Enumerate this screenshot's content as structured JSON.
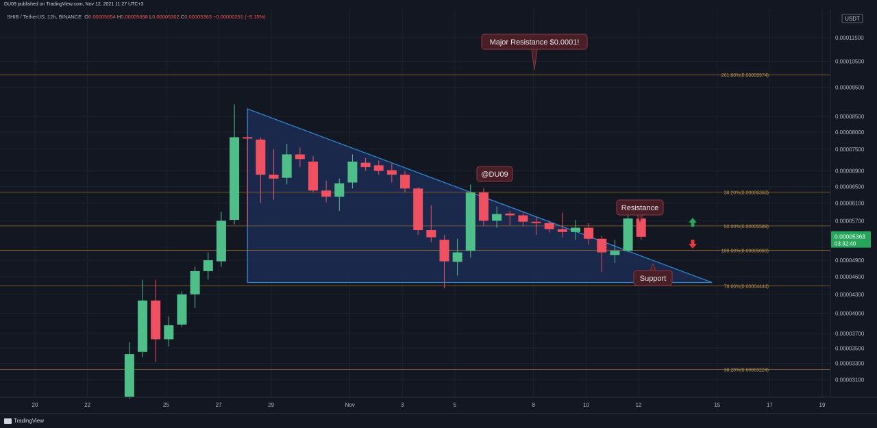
{
  "header": {
    "published": "DU09 published on TradingView.com, Nov 12, 2021 11:27 UTC+3"
  },
  "legend": {
    "symbol": "SHIB / TetherUS, 12h, BINANCE",
    "ohlc": [
      {
        "key": "O",
        "value": "0.00005654"
      },
      {
        "key": "H",
        "value": "0.00005698"
      },
      {
        "key": "L",
        "value": "0.00005302"
      },
      {
        "key": "C",
        "value": "0.00005363"
      }
    ],
    "change": "−0.00000291 (−5.15%)"
  },
  "price_axis": {
    "currency": "USDT",
    "current_price": "0.00005363",
    "countdown": "03:32:40"
  },
  "footer": {
    "brand": "TradingView"
  },
  "colors": {
    "up": "#4fbf8a",
    "down": "#f0505f",
    "triangle_fill": "#1b2c52",
    "triangle_line": "#2f86d0",
    "fib_line": "#9a6b2e",
    "fib_label": "#c79a4a",
    "callout_bg": "#4a1e26",
    "callout_border": "#8a3a45",
    "background": "#131722"
  },
  "chart_data": {
    "type": "candlestick",
    "title": "SHIB / TetherUS, 12h, BINANCE",
    "ylim": [
      2.9e-05,
      0.000128
    ],
    "y_ticks": [
      {
        "label": "0.00003100",
        "v": 3.1e-05
      },
      {
        "label": "0.00003300",
        "v": 3.3e-05
      },
      {
        "label": "0.00003500",
        "v": 3.5e-05
      },
      {
        "label": "0.00003700",
        "v": 3.7e-05
      },
      {
        "label": "0.00004000",
        "v": 4e-05
      },
      {
        "label": "0.00004300",
        "v": 4.3e-05
      },
      {
        "label": "0.00004600",
        "v": 4.6e-05
      },
      {
        "label": "0.00004900",
        "v": 4.9e-05
      },
      {
        "label": "0.00005700",
        "v": 5.7e-05
      },
      {
        "label": "0.00006100",
        "v": 6.1e-05
      },
      {
        "label": "0.00006500",
        "v": 6.5e-05
      },
      {
        "label": "0.00006900",
        "v": 6.9e-05
      },
      {
        "label": "0.00007500",
        "v": 7.5e-05
      },
      {
        "label": "0.00008000",
        "v": 8e-05
      },
      {
        "label": "0.00008500",
        "v": 8.5e-05
      },
      {
        "label": "0.00009500",
        "v": 9.5e-05
      },
      {
        "label": "0.00010500",
        "v": 0.000105
      },
      {
        "label": "0.00011500",
        "v": 0.000115
      }
    ],
    "x_ticks": [
      {
        "label": "20",
        "day": 20
      },
      {
        "label": "22",
        "day": 22
      },
      {
        "label": "25",
        "day": 25
      },
      {
        "label": "27",
        "day": 27
      },
      {
        "label": "29",
        "day": 29
      },
      {
        "label": "Nov",
        "day": 32
      },
      {
        "label": "3",
        "day": 34
      },
      {
        "label": "5",
        "day": 36
      },
      {
        "label": "8",
        "day": 39
      },
      {
        "label": "10",
        "day": 41
      },
      {
        "label": "12",
        "day": 43
      },
      {
        "label": "15",
        "day": 46
      },
      {
        "label": "17",
        "day": 48
      },
      {
        "label": "19",
        "day": 50
      }
    ],
    "candles": [
      {
        "o": 2.9e-05,
        "h": 3.58e-05,
        "l": 2.88e-05,
        "c": 3.42e-05
      },
      {
        "o": 3.45e-05,
        "h": 4.55e-05,
        "l": 3.38e-05,
        "c": 4.2e-05
      },
      {
        "o": 4.2e-05,
        "h": 4.55e-05,
        "l": 3.32e-05,
        "c": 3.62e-05
      },
      {
        "o": 3.62e-05,
        "h": 3.95e-05,
        "l": 3.52e-05,
        "c": 3.82e-05
      },
      {
        "o": 3.83e-05,
        "h": 4.35e-05,
        "l": 3.8e-05,
        "c": 4.3e-05
      },
      {
        "o": 4.3e-05,
        "h": 4.78e-05,
        "l": 4.08e-05,
        "c": 4.7e-05
      },
      {
        "o": 4.7e-05,
        "h": 5.05e-05,
        "l": 4.55e-05,
        "c": 4.9e-05
      },
      {
        "o": 4.88e-05,
        "h": 5.9e-05,
        "l": 4.78e-05,
        "c": 5.7e-05
      },
      {
        "o": 5.72e-05,
        "h": 8.9e-05,
        "l": 5.62e-05,
        "c": 7.85e-05
      },
      {
        "o": 7.85e-05,
        "h": 7.9e-05,
        "l": 5.6e-05,
        "c": 7.82e-05
      },
      {
        "o": 7.78e-05,
        "h": 7.85e-05,
        "l": 6.1e-05,
        "c": 6.8e-05
      },
      {
        "o": 6.8e-05,
        "h": 7.5e-05,
        "l": 6.18e-05,
        "c": 6.7e-05
      },
      {
        "o": 6.72e-05,
        "h": 7.65e-05,
        "l": 6.55e-05,
        "c": 7.35e-05
      },
      {
        "o": 7.35e-05,
        "h": 7.55e-05,
        "l": 7e-05,
        "c": 7.22e-05
      },
      {
        "o": 7.15e-05,
        "h": 7.3e-05,
        "l": 6.35e-05,
        "c": 6.4e-05
      },
      {
        "o": 6.4e-05,
        "h": 6.65e-05,
        "l": 6.12e-05,
        "c": 6.25e-05
      },
      {
        "o": 6.25e-05,
        "h": 6.7e-05,
        "l": 5.92e-05,
        "c": 6.58e-05
      },
      {
        "o": 6.6e-05,
        "h": 7.35e-05,
        "l": 6.45e-05,
        "c": 7.15e-05
      },
      {
        "o": 7.12e-05,
        "h": 7.25e-05,
        "l": 6.9e-05,
        "c": 7e-05
      },
      {
        "o": 7.05e-05,
        "h": 7.18e-05,
        "l": 6.8e-05,
        "c": 6.9e-05
      },
      {
        "o": 6.92e-05,
        "h": 7.1e-05,
        "l": 6.6e-05,
        "c": 6.8e-05
      },
      {
        "o": 6.8e-05,
        "h": 6.9e-05,
        "l": 6.35e-05,
        "c": 6.45e-05
      },
      {
        "o": 6.45e-05,
        "h": 6.48e-05,
        "l": 5.4e-05,
        "c": 5.5e-05
      },
      {
        "o": 5.5e-05,
        "h": 6.05e-05,
        "l": 5.25e-05,
        "c": 5.35e-05
      },
      {
        "o": 5.3e-05,
        "h": 5.4e-05,
        "l": 4.4e-05,
        "c": 4.88e-05
      },
      {
        "o": 4.87e-05,
        "h": 5.32e-05,
        "l": 4.62e-05,
        "c": 5.05e-05
      },
      {
        "o": 5.08e-05,
        "h": 6.55e-05,
        "l": 4.95e-05,
        "c": 6.35e-05
      },
      {
        "o": 6.35e-05,
        "h": 6.45e-05,
        "l": 5.58e-05,
        "c": 5.7e-05
      },
      {
        "o": 5.7e-05,
        "h": 6.02e-05,
        "l": 5.55e-05,
        "c": 5.85e-05
      },
      {
        "o": 5.86e-05,
        "h": 5.92e-05,
        "l": 5.6e-05,
        "c": 5.82e-05
      },
      {
        "o": 5.82e-05,
        "h": 5.88e-05,
        "l": 5.58e-05,
        "c": 5.68e-05
      },
      {
        "o": 5.68e-05,
        "h": 5.78e-05,
        "l": 5.4e-05,
        "c": 5.65e-05
      },
      {
        "o": 5.65e-05,
        "h": 5.7e-05,
        "l": 5.45e-05,
        "c": 5.52e-05
      },
      {
        "o": 5.52e-05,
        "h": 5.88e-05,
        "l": 5.35e-05,
        "c": 5.46e-05
      },
      {
        "o": 5.46e-05,
        "h": 5.72e-05,
        "l": 5.3e-05,
        "c": 5.55e-05
      },
      {
        "o": 5.55e-05,
        "h": 5.65e-05,
        "l": 5.2e-05,
        "c": 5.32e-05
      },
      {
        "o": 5.32e-05,
        "h": 5.38e-05,
        "l": 4.68e-05,
        "c": 5.05e-05
      },
      {
        "o": 5e-05,
        "h": 5.3e-05,
        "l": 4.85e-05,
        "c": 5.08e-05
      },
      {
        "o": 5.08e-05,
        "h": 5.95e-05,
        "l": 5.05e-05,
        "c": 5.75e-05
      },
      {
        "o": 5.75e-05,
        "h": 5.8e-05,
        "l": 5.3e-05,
        "c": 5.36e-05
      }
    ],
    "fib_levels": [
      {
        "label": "261.80%(0.00009974)",
        "v": 9.974e-05,
        "strong": true
      },
      {
        "label": "38.20%(0.00006360)",
        "v": 6.36e-05,
        "strong": true
      },
      {
        "label": "50.00%(0.00005589)",
        "v": 5.589e-05,
        "strong": true
      },
      {
        "label": "100.00%(0.00005090)",
        "v": 5.09e-05,
        "strong": true
      },
      {
        "label": "78.60%(0.00004444)",
        "v": 4.444e-05,
        "strong": true
      },
      {
        "label": "38.20%(0.00003224)",
        "v": 3.224e-05,
        "strong": true
      }
    ],
    "annotations": [
      {
        "text": "Major Resistance $0.0001!"
      },
      {
        "text": "@DU09"
      },
      {
        "text": "Resistance"
      },
      {
        "text": "Support"
      }
    ]
  }
}
